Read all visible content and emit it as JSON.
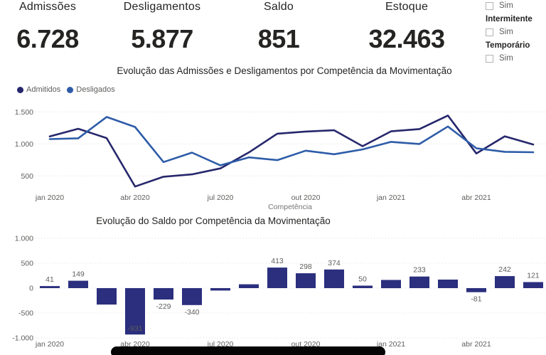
{
  "kpis": [
    {
      "label": "Admissões",
      "value": "6.728"
    },
    {
      "label": "Desligamentos",
      "value": "5.877"
    },
    {
      "label": "Saldo",
      "value": "851"
    },
    {
      "label": "Estoque",
      "value": "32.463"
    }
  ],
  "filters": {
    "sections": [
      {
        "title": "",
        "option": "Sim",
        "checked": false
      },
      {
        "title": "Intermitente",
        "option": "Sim",
        "checked": false
      },
      {
        "title": "Temporário",
        "option": "Sim",
        "checked": false
      }
    ]
  },
  "chart_data": [
    {
      "type": "line",
      "title": "Evolução das Admissões e Desligamentos por Competência da Movimentação",
      "xlabel": "Competência",
      "ylabel": "",
      "categories": [
        "jan 2020",
        "fev 2020",
        "mar 2020",
        "abr 2020",
        "mai 2020",
        "jun 2020",
        "jul 2020",
        "ago 2020",
        "set 2020",
        "out 2020",
        "nov 2020",
        "dez 2020",
        "jan 2021",
        "fev 2021",
        "mar 2021",
        "abr 2021",
        "mai 2021",
        "jun 2021"
      ],
      "x_tick_indices": [
        0,
        3,
        6,
        9,
        12,
        15
      ],
      "x_tick_labels": [
        "jan 2020",
        "abr 2020",
        "jul 2020",
        "out 2020",
        "jan 2021",
        "abr 2021"
      ],
      "y_ticks": [
        {
          "value": 500,
          "label": "500"
        },
        {
          "value": 1000,
          "label": "1.000"
        },
        {
          "value": 1500,
          "label": "1.500"
        }
      ],
      "ylim": [
        250,
        1550
      ],
      "grid": "dotted-horizontal",
      "legend_position": "top-left",
      "series": [
        {
          "name": "Admitidos",
          "color": "#26276C",
          "values": [
            1117,
            1237,
            1091,
            334,
            488,
            525,
            618,
            867,
            1160,
            1193,
            1213,
            964,
            1197,
            1232,
            1443,
            851,
            1119,
            991
          ]
        },
        {
          "name": "Desligados",
          "color": "#2E5CA8",
          "values": [
            1076,
            1088,
            1421,
            1265,
            717,
            865,
            666,
            790,
            747,
            895,
            839,
            914,
            1032,
            999,
            1272,
            932,
            877,
            870
          ]
        }
      ]
    },
    {
      "type": "bar",
      "title": "Evolução do Saldo por Competência da Movimentação",
      "xlabel": "",
      "ylabel": "",
      "categories": [
        "jan 2020",
        "fev 2020",
        "mar 2020",
        "abr 2020",
        "mai 2020",
        "jun 2020",
        "jul 2020",
        "ago 2020",
        "set 2020",
        "out 2020",
        "nov 2020",
        "dez 2020",
        "jan 2021",
        "fev 2021",
        "mar 2021",
        "abr 2021",
        "mai 2021",
        "jun 2021"
      ],
      "x_tick_indices": [
        0,
        3,
        6,
        9,
        12,
        15
      ],
      "x_tick_labels": [
        "jan 2020",
        "abr 2020",
        "jul 2020",
        "out 2020",
        "jan 2021",
        "abr 2021"
      ],
      "y_ticks": [
        {
          "value": 1000,
          "label": "1.000"
        },
        {
          "value": 500,
          "label": "500"
        },
        {
          "value": 0,
          "label": "0"
        },
        {
          "value": -500,
          "label": "-500"
        },
        {
          "value": -1000,
          "label": "-1.000"
        }
      ],
      "ylim": [
        -1000,
        1000
      ],
      "grid": "dotted-horizontal",
      "bar_color": "#2B2F7D",
      "bars": [
        {
          "value": 41,
          "label": "41",
          "label_pos": "above"
        },
        {
          "value": 149,
          "label": "149",
          "label_pos": "above"
        },
        {
          "value": -330,
          "label": "",
          "label_pos": "none"
        },
        {
          "value": -931,
          "label": "-931",
          "label_pos": "inside"
        },
        {
          "value": -229,
          "label": "-229",
          "label_pos": "below"
        },
        {
          "value": -340,
          "label": "-340",
          "label_pos": "below"
        },
        {
          "value": -48,
          "label": "",
          "label_pos": "none"
        },
        {
          "value": 77,
          "label": "",
          "label_pos": "none"
        },
        {
          "value": 413,
          "label": "413",
          "label_pos": "above"
        },
        {
          "value": 298,
          "label": "298",
          "label_pos": "above"
        },
        {
          "value": 374,
          "label": "374",
          "label_pos": "above"
        },
        {
          "value": 50,
          "label": "50",
          "label_pos": "above"
        },
        {
          "value": 165,
          "label": "",
          "label_pos": "none"
        },
        {
          "value": 233,
          "label": "233",
          "label_pos": "above"
        },
        {
          "value": 171,
          "label": "",
          "label_pos": "none"
        },
        {
          "value": -81,
          "label": "-81",
          "label_pos": "below"
        },
        {
          "value": 242,
          "label": "242",
          "label_pos": "above"
        },
        {
          "value": 121,
          "label": "121",
          "label_pos": "above"
        }
      ]
    }
  ]
}
